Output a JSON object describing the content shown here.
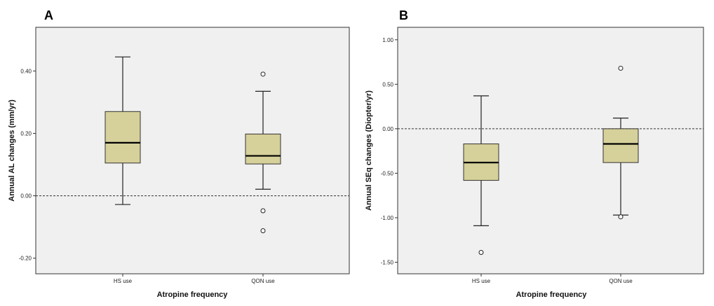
{
  "chart_data": [
    {
      "type": "box",
      "panel_label": "A",
      "xlabel": "Atropine frequency",
      "ylabel": "Annual AL changes (mm/yr)",
      "ylim": [
        -0.25,
        0.54
      ],
      "yticks": [
        -0.2,
        0.0,
        0.2,
        0.4
      ],
      "ytick_labels": [
        "-0.20",
        "0.00",
        "0.20",
        "0.40"
      ],
      "reference_line": 0.0,
      "box_color": "#d6d09a",
      "categories": [
        "HS use",
        "QON use"
      ],
      "boxes": [
        {
          "category": "HS use",
          "whisker_low": -0.028,
          "q1": 0.105,
          "median": 0.17,
          "q3": 0.27,
          "whisker_high": 0.445,
          "outliers": []
        },
        {
          "category": "QON use",
          "whisker_low": 0.021,
          "q1": 0.102,
          "median": 0.128,
          "q3": 0.198,
          "whisker_high": 0.335,
          "outliers": [
            0.39,
            -0.048,
            -0.112
          ]
        }
      ]
    },
    {
      "type": "box",
      "panel_label": "B",
      "xlabel": "Atropine frequency",
      "ylabel": "Annual SEq changes (Diopter/yr)",
      "ylim": [
        -1.63,
        1.14
      ],
      "yticks": [
        -1.5,
        -1.0,
        -0.5,
        0.0,
        0.5,
        1.0
      ],
      "ytick_labels": [
        "-1.50",
        "-1.00",
        "-0.50",
        "0.00",
        "0.50",
        "1.00"
      ],
      "reference_line": 0.0,
      "box_color": "#d6d09a",
      "categories": [
        "HS use",
        "QON use"
      ],
      "boxes": [
        {
          "category": "HS use",
          "whisker_low": -1.09,
          "q1": -0.58,
          "median": -0.38,
          "q3": -0.17,
          "whisker_high": 0.37,
          "outliers": [
            -1.39
          ]
        },
        {
          "category": "QON use",
          "whisker_low": -0.97,
          "q1": -0.38,
          "median": -0.17,
          "q3": 0.0,
          "whisker_high": 0.12,
          "outliers": [
            0.68,
            -0.99
          ]
        }
      ]
    }
  ]
}
